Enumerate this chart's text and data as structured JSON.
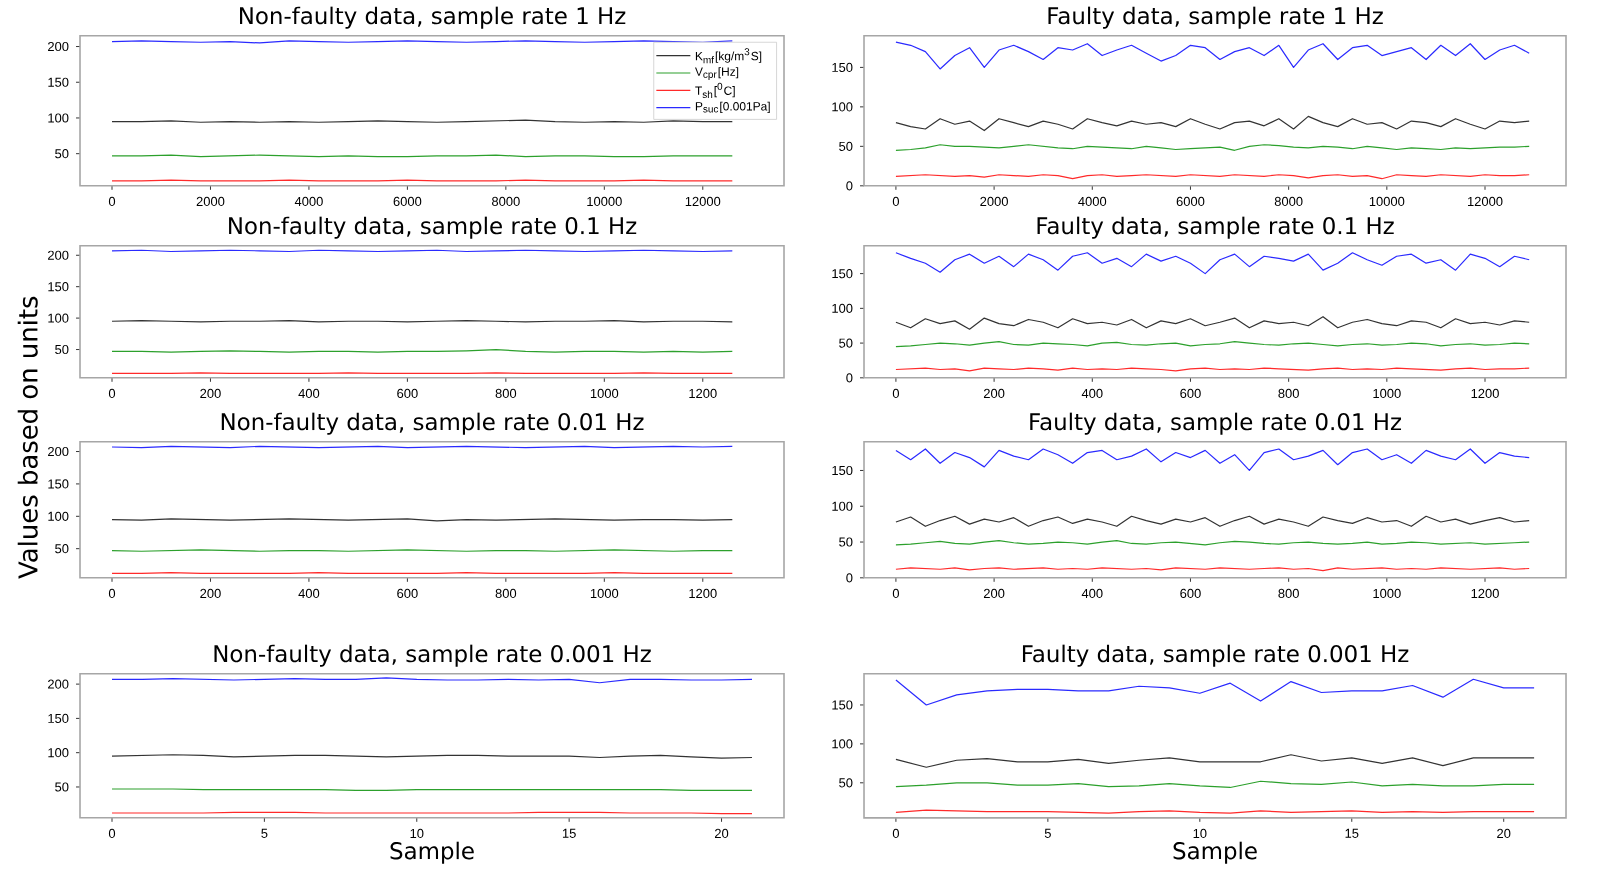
{
  "chart_data": [
    {
      "type": "line",
      "title": "Non-faulty data, sample rate 1 Hz",
      "legend": "right",
      "xlim": [
        -650,
        13650
      ],
      "ylim": [
        5,
        215
      ],
      "xticks": [
        0,
        2000,
        4000,
        6000,
        8000,
        10000,
        12000
      ],
      "yticks": [
        50,
        100,
        150,
        200
      ],
      "x": [
        0,
        600,
        1200,
        1800,
        2400,
        3000,
        3600,
        4200,
        4800,
        5400,
        6000,
        6600,
        7200,
        7800,
        8400,
        9000,
        9600,
        10200,
        10800,
        11400,
        12000,
        12600
      ],
      "series": [
        {
          "name": "K$_{mf}$[kg/m$^{3}$S]",
          "color": "#333333",
          "values": [
            95,
            95,
            96,
            94,
            95,
            94,
            95,
            94,
            95,
            96,
            95,
            94,
            95,
            96,
            97,
            95,
            94,
            95,
            94,
            96,
            95,
            95
          ]
        },
        {
          "name": "V$_{cpr}$[Hz]",
          "color": "#2ca02c",
          "values": [
            47,
            47,
            48,
            46,
            47,
            48,
            47,
            46,
            47,
            46,
            46,
            47,
            47,
            48,
            46,
            47,
            47,
            46,
            46,
            47,
            47,
            47
          ]
        },
        {
          "name": "T$_{sh}$[$^{0}$C]",
          "color": "#ff2a2a",
          "values": [
            12,
            12,
            13,
            12,
            12,
            12,
            13,
            12,
            12,
            12,
            13,
            12,
            12,
            12,
            13,
            12,
            12,
            12,
            13,
            12,
            12,
            12
          ]
        },
        {
          "name": "P$_{suc}$[0.001Pa]",
          "color": "#2a2aff",
          "values": [
            207,
            208,
            207,
            206,
            207,
            205,
            208,
            207,
            206,
            207,
            208,
            207,
            206,
            207,
            208,
            207,
            206,
            207,
            208,
            207,
            206,
            208
          ]
        }
      ]
    },
    {
      "type": "line",
      "title": "Faulty data, sample rate 1 Hz",
      "xlim": [
        -650,
        13650
      ],
      "ylim": [
        0,
        190
      ],
      "xticks": [
        0,
        2000,
        4000,
        6000,
        8000,
        10000,
        12000
      ],
      "yticks": [
        0,
        50,
        100,
        150
      ],
      "x": [
        0,
        300,
        600,
        900,
        1200,
        1500,
        1800,
        2100,
        2400,
        2700,
        3000,
        3300,
        3600,
        3900,
        4200,
        4500,
        4800,
        5100,
        5400,
        5700,
        6000,
        6300,
        6600,
        6900,
        7200,
        7500,
        7800,
        8100,
        8400,
        8700,
        9000,
        9300,
        9600,
        9900,
        10200,
        10500,
        10800,
        11100,
        11400,
        11700,
        12000,
        12300,
        12600,
        12900
      ],
      "series": [
        {
          "color": "#333333",
          "values": [
            80,
            75,
            72,
            85,
            78,
            82,
            70,
            85,
            80,
            75,
            82,
            78,
            72,
            85,
            80,
            76,
            82,
            78,
            80,
            75,
            85,
            78,
            72,
            80,
            82,
            76,
            85,
            72,
            88,
            80,
            75,
            85,
            78,
            80,
            72,
            82,
            80,
            75,
            85,
            78,
            72,
            82,
            80,
            82
          ]
        },
        {
          "color": "#2ca02c",
          "values": [
            45,
            46,
            48,
            52,
            50,
            50,
            49,
            48,
            50,
            52,
            50,
            48,
            47,
            50,
            49,
            48,
            47,
            50,
            48,
            46,
            47,
            48,
            49,
            45,
            50,
            52,
            51,
            49,
            48,
            50,
            49,
            47,
            50,
            48,
            46,
            48,
            47,
            46,
            48,
            47,
            48,
            49,
            49,
            50
          ]
        },
        {
          "color": "#ff2a2a",
          "values": [
            12,
            13,
            14,
            13,
            12,
            13,
            11,
            14,
            13,
            12,
            14,
            13,
            9,
            13,
            14,
            12,
            13,
            14,
            13,
            12,
            14,
            13,
            12,
            14,
            13,
            12,
            14,
            13,
            10,
            13,
            14,
            12,
            13,
            9,
            14,
            13,
            12,
            14,
            13,
            12,
            14,
            13,
            13,
            14
          ]
        },
        {
          "color": "#2a2aff",
          "values": [
            182,
            178,
            170,
            148,
            165,
            175,
            150,
            172,
            178,
            170,
            160,
            175,
            172,
            180,
            165,
            172,
            178,
            168,
            158,
            165,
            178,
            175,
            160,
            170,
            175,
            165,
            178,
            150,
            172,
            180,
            160,
            175,
            178,
            165,
            170,
            175,
            160,
            178,
            165,
            180,
            160,
            172,
            178,
            168
          ]
        }
      ]
    },
    {
      "type": "line",
      "title": "Non-faulty data, sample rate 0.1 Hz",
      "ylabel": "Values based on units",
      "xlim": [
        -65,
        1365
      ],
      "ylim": [
        5,
        215
      ],
      "xticks": [
        0,
        200,
        400,
        600,
        800,
        1000,
        1200
      ],
      "yticks": [
        50,
        100,
        150,
        200
      ],
      "x": [
        0,
        60,
        120,
        180,
        240,
        300,
        360,
        420,
        480,
        540,
        600,
        660,
        720,
        780,
        840,
        900,
        960,
        1020,
        1080,
        1140,
        1200,
        1260
      ],
      "series": [
        {
          "color": "#333333",
          "values": [
            95,
            96,
            95,
            94,
            95,
            95,
            96,
            94,
            95,
            95,
            94,
            95,
            96,
            95,
            94,
            95,
            95,
            96,
            94,
            95,
            95,
            94
          ]
        },
        {
          "color": "#2ca02c",
          "values": [
            47,
            47,
            46,
            47,
            48,
            47,
            46,
            47,
            47,
            46,
            47,
            47,
            48,
            50,
            47,
            46,
            47,
            47,
            46,
            47,
            46,
            47
          ]
        },
        {
          "color": "#ff2a2a",
          "values": [
            12,
            12,
            12,
            13,
            12,
            12,
            12,
            12,
            13,
            12,
            12,
            12,
            12,
            13,
            12,
            12,
            12,
            12,
            13,
            12,
            12,
            12
          ]
        },
        {
          "color": "#2a2aff",
          "values": [
            207,
            208,
            206,
            207,
            208,
            207,
            206,
            208,
            207,
            206,
            207,
            208,
            206,
            207,
            208,
            207,
            206,
            207,
            208,
            207,
            206,
            207
          ]
        }
      ]
    },
    {
      "type": "line",
      "title": "Faulty data, sample rate 0.1 Hz",
      "xlim": [
        -65,
        1365
      ],
      "ylim": [
        0,
        190
      ],
      "xticks": [
        0,
        200,
        400,
        600,
        800,
        1000,
        1200
      ],
      "yticks": [
        0,
        50,
        100,
        150
      ],
      "x": [
        0,
        30,
        60,
        90,
        120,
        150,
        180,
        210,
        240,
        270,
        300,
        330,
        360,
        390,
        420,
        450,
        480,
        510,
        540,
        570,
        600,
        630,
        660,
        690,
        720,
        750,
        780,
        810,
        840,
        870,
        900,
        930,
        960,
        990,
        1020,
        1050,
        1080,
        1110,
        1140,
        1170,
        1200,
        1230,
        1260,
        1290
      ],
      "series": [
        {
          "color": "#333333",
          "values": [
            80,
            72,
            85,
            78,
            82,
            70,
            86,
            78,
            75,
            84,
            80,
            72,
            85,
            78,
            80,
            76,
            84,
            72,
            82,
            78,
            85,
            75,
            80,
            86,
            72,
            82,
            78,
            80,
            75,
            88,
            72,
            80,
            84,
            78,
            75,
            82,
            80,
            72,
            85,
            78,
            80,
            76,
            82,
            80
          ]
        },
        {
          "color": "#2ca02c",
          "values": [
            45,
            46,
            48,
            50,
            49,
            47,
            50,
            52,
            48,
            47,
            50,
            49,
            48,
            46,
            50,
            51,
            48,
            47,
            49,
            50,
            46,
            48,
            49,
            52,
            50,
            48,
            47,
            49,
            50,
            48,
            46,
            48,
            49,
            47,
            48,
            50,
            49,
            46,
            48,
            49,
            47,
            48,
            50,
            49
          ]
        },
        {
          "color": "#ff2a2a",
          "values": [
            12,
            13,
            14,
            12,
            13,
            10,
            14,
            13,
            12,
            14,
            13,
            11,
            14,
            12,
            13,
            12,
            14,
            13,
            12,
            10,
            13,
            14,
            12,
            13,
            12,
            14,
            13,
            12,
            11,
            13,
            14,
            12,
            13,
            12,
            14,
            13,
            12,
            11,
            13,
            14,
            12,
            13,
            13,
            14
          ]
        },
        {
          "color": "#2a2aff",
          "values": [
            180,
            172,
            165,
            152,
            170,
            178,
            165,
            175,
            160,
            178,
            170,
            155,
            175,
            180,
            165,
            172,
            160,
            178,
            168,
            175,
            165,
            150,
            170,
            178,
            160,
            175,
            172,
            168,
            178,
            155,
            165,
            180,
            170,
            162,
            175,
            178,
            165,
            170,
            155,
            178,
            172,
            160,
            175,
            170
          ]
        }
      ]
    },
    {
      "type": "line",
      "title": "Non-faulty data, sample rate 0.01 Hz",
      "xlim": [
        -65,
        1365
      ],
      "ylim": [
        5,
        215
      ],
      "xticks": [
        0,
        200,
        400,
        600,
        800,
        1000,
        1200
      ],
      "yticks": [
        50,
        100,
        150,
        200
      ],
      "x": [
        0,
        60,
        120,
        180,
        240,
        300,
        360,
        420,
        480,
        540,
        600,
        660,
        720,
        780,
        840,
        900,
        960,
        1020,
        1080,
        1140,
        1200,
        1260
      ],
      "series": [
        {
          "color": "#333333",
          "values": [
            95,
            94,
            96,
            95,
            94,
            95,
            96,
            95,
            94,
            95,
            96,
            93,
            95,
            94,
            95,
            96,
            95,
            94,
            95,
            95,
            94,
            95
          ]
        },
        {
          "color": "#2ca02c",
          "values": [
            47,
            46,
            47,
            48,
            47,
            46,
            47,
            47,
            46,
            47,
            48,
            47,
            46,
            47,
            47,
            46,
            47,
            48,
            47,
            46,
            47,
            47
          ]
        },
        {
          "color": "#ff2a2a",
          "values": [
            12,
            12,
            13,
            12,
            12,
            12,
            12,
            13,
            12,
            12,
            12,
            12,
            13,
            12,
            12,
            12,
            12,
            13,
            12,
            12,
            12,
            12
          ]
        },
        {
          "color": "#2a2aff",
          "values": [
            207,
            206,
            208,
            207,
            206,
            208,
            207,
            206,
            207,
            208,
            206,
            207,
            208,
            207,
            206,
            207,
            208,
            206,
            207,
            208,
            207,
            208
          ]
        }
      ]
    },
    {
      "type": "line",
      "title": "Faulty data, sample rate 0.01 Hz",
      "xlim": [
        -65,
        1365
      ],
      "ylim": [
        0,
        190
      ],
      "xticks": [
        0,
        200,
        400,
        600,
        800,
        1000,
        1200
      ],
      "yticks": [
        0,
        50,
        100,
        150
      ],
      "x": [
        0,
        30,
        60,
        90,
        120,
        150,
        180,
        210,
        240,
        270,
        300,
        330,
        360,
        390,
        420,
        450,
        480,
        510,
        540,
        570,
        600,
        630,
        660,
        690,
        720,
        750,
        780,
        810,
        840,
        870,
        900,
        930,
        960,
        990,
        1020,
        1050,
        1080,
        1110,
        1140,
        1170,
        1200,
        1230,
        1260,
        1290
      ],
      "series": [
        {
          "color": "#333333",
          "values": [
            78,
            85,
            72,
            80,
            86,
            75,
            82,
            78,
            84,
            72,
            80,
            85,
            76,
            82,
            78,
            72,
            86,
            80,
            75,
            82,
            78,
            84,
            72,
            80,
            86,
            75,
            82,
            78,
            72,
            85,
            80,
            76,
            84,
            78,
            80,
            72,
            86,
            78,
            82,
            75,
            80,
            84,
            78,
            80
          ]
        },
        {
          "color": "#2ca02c",
          "values": [
            46,
            47,
            49,
            51,
            48,
            47,
            50,
            52,
            49,
            47,
            48,
            50,
            49,
            47,
            50,
            52,
            48,
            47,
            49,
            50,
            48,
            46,
            49,
            51,
            50,
            48,
            47,
            49,
            50,
            48,
            47,
            48,
            50,
            47,
            48,
            50,
            49,
            47,
            48,
            49,
            47,
            48,
            49,
            50
          ]
        },
        {
          "color": "#ff2a2a",
          "values": [
            12,
            14,
            13,
            12,
            14,
            11,
            13,
            14,
            12,
            13,
            14,
            12,
            13,
            12,
            14,
            13,
            12,
            13,
            11,
            14,
            13,
            12,
            14,
            13,
            12,
            13,
            14,
            12,
            13,
            10,
            14,
            12,
            13,
            14,
            12,
            13,
            12,
            14,
            13,
            12,
            13,
            14,
            12,
            13
          ]
        },
        {
          "color": "#2a2aff",
          "values": [
            178,
            165,
            180,
            160,
            175,
            168,
            155,
            178,
            170,
            165,
            180,
            172,
            160,
            175,
            178,
            165,
            170,
            180,
            162,
            175,
            168,
            178,
            160,
            172,
            150,
            175,
            180,
            165,
            170,
            178,
            158,
            175,
            180,
            165,
            172,
            160,
            178,
            170,
            165,
            180,
            160,
            175,
            170,
            168
          ]
        }
      ]
    },
    {
      "type": "line",
      "title": "Non-faulty data, sample rate 0.001 Hz",
      "xlabel": "Sample",
      "xlim": [
        -1.05,
        22.05
      ],
      "ylim": [
        5,
        215
      ],
      "xticks": [
        0,
        5,
        10,
        15,
        20
      ],
      "yticks": [
        50,
        100,
        150,
        200
      ],
      "x": [
        0,
        1,
        2,
        3,
        4,
        5,
        6,
        7,
        8,
        9,
        10,
        11,
        12,
        13,
        14,
        15,
        16,
        17,
        18,
        19,
        20,
        21
      ],
      "series": [
        {
          "color": "#333333",
          "values": [
            95,
            96,
            97,
            96,
            94,
            95,
            96,
            96,
            95,
            94,
            95,
            96,
            96,
            95,
            95,
            95,
            93,
            95,
            96,
            94,
            92,
            93
          ]
        },
        {
          "color": "#2ca02c",
          "values": [
            47,
            47,
            47,
            46,
            46,
            46,
            46,
            46,
            45,
            45,
            46,
            46,
            46,
            46,
            46,
            46,
            46,
            46,
            46,
            45,
            45,
            45
          ]
        },
        {
          "color": "#ff2a2a",
          "values": [
            12,
            12,
            12,
            12,
            13,
            13,
            13,
            12,
            12,
            12,
            12,
            12,
            12,
            12,
            13,
            13,
            13,
            12,
            12,
            12,
            11,
            11
          ]
        },
        {
          "color": "#2a2aff",
          "values": [
            207,
            207,
            208,
            207,
            206,
            207,
            208,
            207,
            207,
            209,
            207,
            206,
            206,
            207,
            206,
            207,
            202,
            207,
            207,
            206,
            206,
            207
          ]
        }
      ]
    },
    {
      "type": "line",
      "title": "Faulty data, sample rate 0.001 Hz",
      "xlabel": "Sample",
      "xlim": [
        -1.05,
        22.05
      ],
      "ylim": [
        5,
        190
      ],
      "xticks": [
        0,
        5,
        10,
        15,
        20
      ],
      "yticks": [
        50,
        100,
        150
      ],
      "x": [
        0,
        1,
        2,
        3,
        4,
        5,
        6,
        7,
        8,
        9,
        10,
        11,
        12,
        13,
        14,
        15,
        16,
        17,
        18,
        19,
        20,
        21
      ],
      "series": [
        {
          "color": "#333333",
          "values": [
            80,
            70,
            79,
            81,
            77,
            77,
            80,
            75,
            79,
            82,
            77,
            77,
            77,
            86,
            78,
            82,
            75,
            82,
            72,
            82,
            82,
            82
          ]
        },
        {
          "color": "#2ca02c",
          "values": [
            45,
            47,
            50,
            50,
            47,
            47,
            49,
            45,
            46,
            49,
            46,
            44,
            52,
            49,
            48,
            51,
            46,
            48,
            46,
            46,
            48,
            48
          ]
        },
        {
          "color": "#ff2a2a",
          "values": [
            12,
            15,
            14,
            13,
            13,
            13,
            12,
            11,
            13,
            14,
            12,
            11,
            14,
            12,
            13,
            14,
            12,
            13,
            12,
            13,
            13,
            13
          ]
        },
        {
          "color": "#2a2aff",
          "values": [
            182,
            150,
            163,
            168,
            170,
            170,
            168,
            168,
            174,
            172,
            165,
            178,
            155,
            180,
            166,
            168,
            168,
            175,
            160,
            183,
            172,
            172
          ]
        }
      ]
    }
  ]
}
